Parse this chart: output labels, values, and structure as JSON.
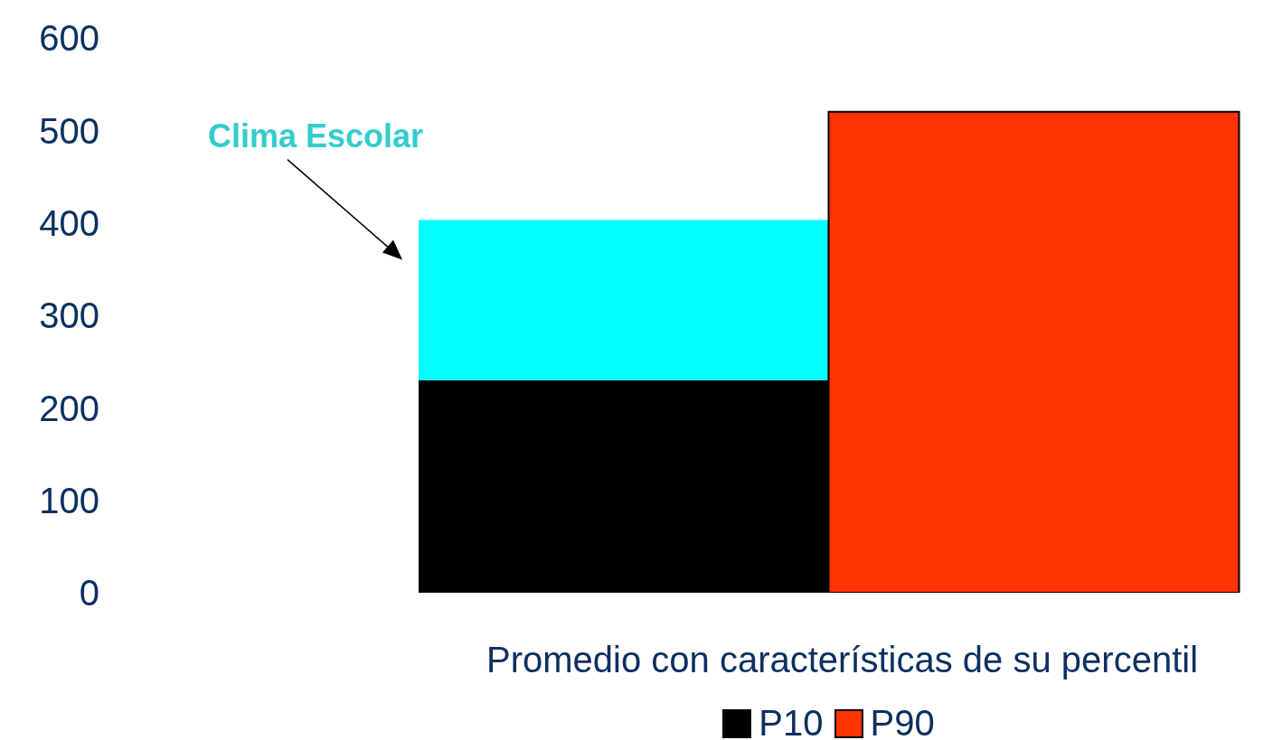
{
  "chart_data": {
    "type": "bar",
    "stacked": true,
    "categories": [
      null,
      null
    ],
    "series": [
      {
        "name": "P10",
        "color": "#000000",
        "values": [
          230,
          null
        ]
      },
      {
        "color": "#00ffff",
        "values": [
          173,
          null
        ]
      },
      {
        "name": "P90",
        "color": "#ff3300",
        "values": [
          null,
          520
        ]
      }
    ],
    "ylim": [
      0,
      600
    ],
    "yticks": [
      0,
      100,
      200,
      300,
      400,
      500,
      600
    ],
    "grid": false,
    "xlabel": "Promedio con características de su percentil",
    "annotations": [
      "Clima Escolar"
    ],
    "legend": "bottom"
  }
}
